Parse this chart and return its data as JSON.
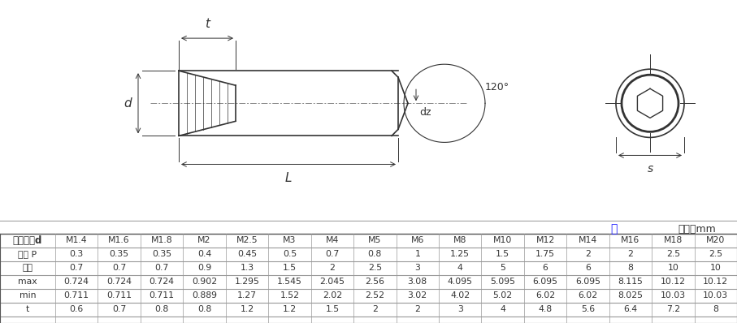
{
  "title_unit": "单位：mm",
  "title_stock": "存",
  "bg_color": "#ffffff",
  "blue_color": "#1a1aff",
  "line_color": "#333333",
  "gray_color": "#888888",
  "table_line_color": "#999999",
  "angle_label": "120°",
  "table_header_row1": [
    "螺纹规格d",
    "M1.4",
    "M1.6",
    "M1.8",
    "M2",
    "M2.5",
    "M3",
    "M4",
    "M5",
    "M6",
    "M8",
    "M10",
    "M12",
    "M14",
    "M16",
    "M18",
    "M20"
  ],
  "table_row_pitch": [
    "螺距 P",
    "0.3",
    "0.35",
    "0.35",
    "0.4",
    "0.45",
    "0.5",
    "0.7",
    "0.8",
    "1",
    "1.25",
    "1.5",
    "1.75",
    "2",
    "2",
    "2.5",
    "2.5"
  ],
  "table_row_nominal": [
    "公称",
    "0.7",
    "0.7",
    "0.7",
    "0.9",
    "1.3",
    "1.5",
    "2",
    "2.5",
    "3",
    "4",
    "5",
    "6",
    "6",
    "8",
    "10",
    "10"
  ],
  "table_row_smax": [
    "max",
    "0.724",
    "0.724",
    "0.724",
    "0.902",
    "1.295",
    "1.545",
    "2.045",
    "2.56",
    "3.08",
    "4.095",
    "5.095",
    "6.095",
    "6.095",
    "8.115",
    "10.12",
    "10.12"
  ],
  "table_row_smin": [
    "min",
    "0.711",
    "0.711",
    "0.711",
    "0.889",
    "1.27",
    "1.52",
    "2.02",
    "2.52",
    "3.02",
    "4.02",
    "5.02",
    "6.02",
    "6.02",
    "8.025",
    "10.03",
    "10.03"
  ],
  "table_row_t": [
    "t",
    "0.6",
    "0.7",
    "0.8",
    "0.8",
    "1.2",
    "1.2",
    "1.5",
    "2",
    "2",
    "3",
    "4",
    "4.8",
    "5.6",
    "6.4",
    "7.2",
    "8"
  ],
  "S_label": "S"
}
